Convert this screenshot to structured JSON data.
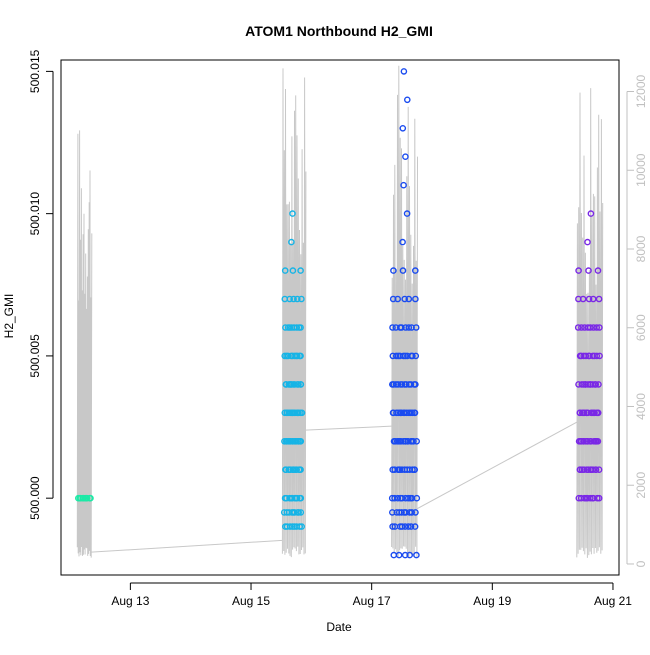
{
  "chart_data": {
    "type": "scatter",
    "title": "ATOM1 Northbound H2_GMI",
    "xlabel": "Date",
    "ylabel": "H2_GMI",
    "y_right_label": "",
    "x_ticks": [
      "Aug 13",
      "Aug 15",
      "Aug 17",
      "Aug 19",
      "Aug 21"
    ],
    "x_tick_days": [
      13,
      15,
      17,
      19,
      21
    ],
    "xlim_days": [
      11.85,
      21.1
    ],
    "y_ticks": [
      "500.000",
      "500.005",
      "500.010",
      "500.015"
    ],
    "y_tick_values": [
      500.0,
      500.005,
      500.01,
      500.015
    ],
    "ylim": [
      499.9973,
      500.0154
    ],
    "y_right_ticks": [
      "0",
      "2000",
      "4000",
      "6000",
      "8000",
      "10000",
      "12000"
    ],
    "y_right_tick_values": [
      0,
      2000,
      4000,
      6000,
      8000,
      10000,
      12000
    ],
    "y_right_lim": [
      -280,
      12800
    ],
    "grid": false,
    "legend": "none",
    "colors": {
      "axis": "#000000",
      "right_axis": "#c0c0c0",
      "line": "#c8c8c8"
    },
    "series": [
      {
        "color": "#1de9a6",
        "x_range_days": [
          12.12,
          12.35
        ],
        "y_values": [
          500.0
        ]
      },
      {
        "color": "#16b4e6",
        "x_range_days": [
          15.55,
          15.85
        ],
        "y_values": [
          499.999,
          499.9995,
          500.0,
          500.001,
          500.002,
          500.003,
          500.004,
          500.005,
          500.006,
          500.007,
          500.008,
          500.009,
          500.01
        ]
      },
      {
        "color": "#1a4bf0",
        "x_range_days": [
          17.33,
          17.75
        ],
        "y_values": [
          499.998,
          499.999,
          499.9995,
          500.0,
          500.001,
          500.002,
          500.003,
          500.004,
          500.005,
          500.006,
          500.007,
          500.008,
          500.009,
          500.01,
          500.011,
          500.012,
          500.013,
          500.014,
          500.015
        ]
      },
      {
        "color": "#7a28e6",
        "x_range_days": [
          20.42,
          20.78
        ],
        "y_values": [
          500.0,
          500.001,
          500.002,
          500.003,
          500.004,
          500.005,
          500.006,
          500.007,
          500.008,
          500.009,
          500.01
        ]
      }
    ],
    "secondary_line": {
      "color": "#c8c8c8",
      "bursts": [
        {
          "x_range_days": [
            12.12,
            12.35
          ],
          "peak": 11500
        },
        {
          "x_range_days": [
            15.52,
            15.9
          ],
          "peak": 12600
        },
        {
          "x_range_days": [
            17.33,
            17.75
          ],
          "peak": 12800
        },
        {
          "x_range_days": [
            20.4,
            20.82
          ],
          "peak": 12200
        }
      ],
      "connectors": [
        {
          "from": [
            12.35,
            300
          ],
          "to": [
            15.52,
            600
          ]
        },
        {
          "from": [
            15.9,
            3400
          ],
          "to": [
            17.33,
            3500
          ]
        },
        {
          "from": [
            17.75,
            1400
          ],
          "to": [
            20.4,
            3600
          ]
        }
      ]
    }
  }
}
